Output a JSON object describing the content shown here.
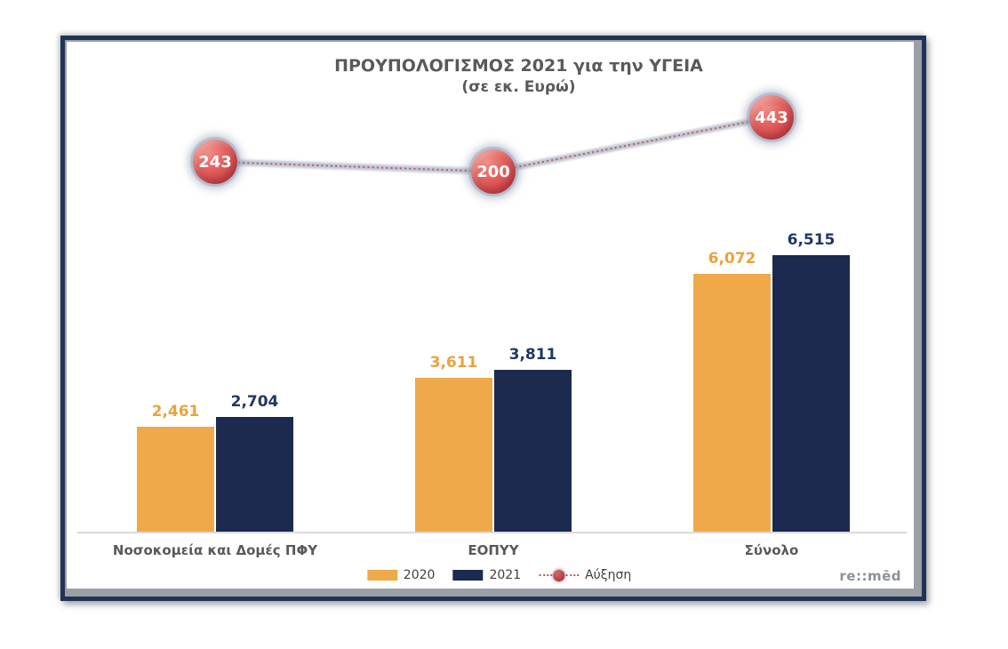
{
  "watermark": "re::mēd",
  "style": {
    "frame_border_color": "#1F3355",
    "frame_matte_color": "#9B9FA6",
    "title_color": "#595959",
    "baseline_color": "#DBDBDB",
    "marker_fill": "#D85153",
    "marker_text_color": "#FFFFFF"
  },
  "chart_data": {
    "type": "bar",
    "title": "ΠΡΟΥΠΟΛΟΓΙΣΜΟΣ 2021 για την ΥΓΕΙΑ",
    "subtitle": "(σε εκ. Ευρώ)",
    "categories": [
      "Νοσοκομεία και Δομές ΠΦΥ",
      "ΕΟΠΥΥ",
      "Σύνολο"
    ],
    "series": [
      {
        "name": "2020",
        "color": "#F0A94A",
        "label_color": "#E8A33C",
        "values": [
          2461,
          3611,
          6072
        ],
        "labels": [
          "2,461",
          "3,611",
          "6,072"
        ]
      },
      {
        "name": "2021",
        "color": "#1B2A4E",
        "label_color": "#1F3864",
        "values": [
          2704,
          3811,
          6515
        ],
        "labels": [
          "2,704",
          "3,811",
          "6,515"
        ]
      }
    ],
    "line_series": {
      "name": "Αύξηση",
      "type": "line",
      "style": "dotted",
      "color": "#C0504D",
      "band_color": "#A9B2C6",
      "values": [
        243,
        200,
        443
      ],
      "labels": [
        "243",
        "200",
        "443"
      ]
    },
    "legend_position": "bottom",
    "grid": false,
    "axes_hidden": true,
    "bar_axis_range": [
      0,
      7000
    ],
    "line_axis_range": [
      0,
      500
    ]
  }
}
